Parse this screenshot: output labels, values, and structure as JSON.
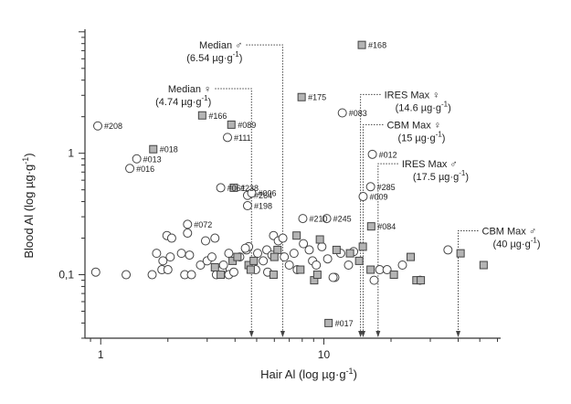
{
  "chart_data": {
    "type": "scatter",
    "xlabel": "Hair Al (log µg·g",
    "xlabel_sup": "-1",
    "xlabel_end": ")",
    "ylabel": "Blood Al (log µg·g",
    "ylabel_sup": "-1",
    "ylabel_end": ")",
    "x_scale": "log",
    "y_scale": "log",
    "xlim": [
      0.85,
      62
    ],
    "ylim": [
      0.03,
      10.5
    ],
    "x_ticks": [
      {
        "value": 1,
        "label": "1"
      },
      {
        "value": 10,
        "label": "10"
      }
    ],
    "y_ticks": [
      {
        "value": 0.1,
        "label": "0,1"
      },
      {
        "value": 1,
        "label": "1"
      }
    ],
    "grid": false,
    "series": [
      {
        "marker": "circle",
        "points": [
          {
            "x": 0.95,
            "y": 0.105
          },
          {
            "x": 1.3,
            "y": 0.1
          },
          {
            "x": 1.7,
            "y": 0.1
          },
          {
            "x": 1.88,
            "y": 0.11
          },
          {
            "x": 1.98,
            "y": 0.21
          },
          {
            "x": 1.78,
            "y": 0.15
          },
          {
            "x": 2.05,
            "y": 0.14
          },
          {
            "x": 2.08,
            "y": 0.2
          },
          {
            "x": 1.9,
            "y": 0.13
          },
          {
            "x": 2.3,
            "y": 0.15
          },
          {
            "x": 2.38,
            "y": 0.1
          },
          {
            "x": 2.5,
            "y": 0.145
          },
          {
            "x": 2.55,
            "y": 0.1
          },
          {
            "x": 2.8,
            "y": 0.12
          },
          {
            "x": 2.95,
            "y": 0.19
          },
          {
            "x": 3.25,
            "y": 0.2
          },
          {
            "x": 2.45,
            "y": 0.22
          },
          {
            "x": 3.0,
            "y": 0.13
          },
          {
            "x": 3.3,
            "y": 0.1
          },
          {
            "x": 3.5,
            "y": 0.11
          },
          {
            "x": 3.55,
            "y": 0.12
          },
          {
            "x": 3.75,
            "y": 0.1
          },
          {
            "x": 3.95,
            "y": 0.105
          },
          {
            "x": 3.75,
            "y": 0.15
          },
          {
            "x": 4.2,
            "y": 0.14
          },
          {
            "x": 4.5,
            "y": 0.16
          },
          {
            "x": 4.6,
            "y": 0.17
          },
          {
            "x": 4.75,
            "y": 0.12
          },
          {
            "x": 4.95,
            "y": 0.11
          },
          {
            "x": 5.05,
            "y": 0.15
          },
          {
            "x": 5.35,
            "y": 0.13
          },
          {
            "x": 5.55,
            "y": 0.16
          },
          {
            "x": 5.85,
            "y": 0.145
          },
          {
            "x": 5.95,
            "y": 0.21
          },
          {
            "x": 6.25,
            "y": 0.19
          },
          {
            "x": 6.55,
            "y": 0.2
          },
          {
            "x": 6.65,
            "y": 0.14
          },
          {
            "x": 7.0,
            "y": 0.12
          },
          {
            "x": 7.35,
            "y": 0.15
          },
          {
            "x": 7.6,
            "y": 0.11
          },
          {
            "x": 8.1,
            "y": 0.18
          },
          {
            "x": 8.6,
            "y": 0.16
          },
          {
            "x": 8.9,
            "y": 0.13
          },
          {
            "x": 9.25,
            "y": 0.12
          },
          {
            "x": 9.8,
            "y": 0.17
          },
          {
            "x": 10.4,
            "y": 0.135
          },
          {
            "x": 11.2,
            "y": 0.095
          },
          {
            "x": 11.0,
            "y": 0.095
          },
          {
            "x": 11.9,
            "y": 0.15
          },
          {
            "x": 12.9,
            "y": 0.12
          },
          {
            "x": 13.6,
            "y": 0.155
          },
          {
            "x": 16.8,
            "y": 0.09
          },
          {
            "x": 17.8,
            "y": 0.11
          },
          {
            "x": 19.2,
            "y": 0.11
          },
          {
            "x": 22.5,
            "y": 0.12
          },
          {
            "x": 27.0,
            "y": 0.09
          },
          {
            "x": 36.0,
            "y": 0.16
          },
          {
            "x": 4.45,
            "y": 0.165
          },
          {
            "x": 3.15,
            "y": 0.14
          },
          {
            "x": 5.6,
            "y": 0.105
          },
          {
            "x": 2.0,
            "y": 0.11
          }
        ]
      },
      {
        "marker": "square",
        "points": [
          {
            "x": 3.25,
            "y": 0.115
          },
          {
            "x": 3.45,
            "y": 0.1
          },
          {
            "x": 3.9,
            "y": 0.13
          },
          {
            "x": 4.1,
            "y": 0.14
          },
          {
            "x": 4.6,
            "y": 0.12
          },
          {
            "x": 4.7,
            "y": 0.11
          },
          {
            "x": 4.85,
            "y": 0.13
          },
          {
            "x": 5.95,
            "y": 0.1
          },
          {
            "x": 6.2,
            "y": 0.16
          },
          {
            "x": 7.55,
            "y": 0.21
          },
          {
            "x": 7.85,
            "y": 0.11
          },
          {
            "x": 9.05,
            "y": 0.09
          },
          {
            "x": 9.35,
            "y": 0.1
          },
          {
            "x": 9.6,
            "y": 0.195
          },
          {
            "x": 11.4,
            "y": 0.16
          },
          {
            "x": 13.1,
            "y": 0.15
          },
          {
            "x": 14.4,
            "y": 0.13
          },
          {
            "x": 14.95,
            "y": 0.17
          },
          {
            "x": 16.2,
            "y": 0.11
          },
          {
            "x": 20.6,
            "y": 0.1
          },
          {
            "x": 24.5,
            "y": 0.14
          },
          {
            "x": 26.0,
            "y": 0.09
          },
          {
            "x": 27.2,
            "y": 0.09
          },
          {
            "x": 41.0,
            "y": 0.15
          },
          {
            "x": 52.0,
            "y": 0.12
          },
          {
            "x": 6.0,
            "y": 0.14
          }
        ]
      }
    ],
    "labeled_points": [
      {
        "label": "#208",
        "x": 0.97,
        "y": 1.68,
        "marker": "circle"
      },
      {
        "label": "#018",
        "x": 1.72,
        "y": 1.08,
        "marker": "square"
      },
      {
        "label": "#013",
        "x": 1.45,
        "y": 0.9,
        "marker": "circle"
      },
      {
        "label": "#016",
        "x": 1.35,
        "y": 0.75,
        "marker": "circle"
      },
      {
        "label": "#166",
        "x": 2.85,
        "y": 2.05,
        "marker": "square"
      },
      {
        "label": "#089",
        "x": 3.85,
        "y": 1.72,
        "marker": "square"
      },
      {
        "label": "#111",
        "x": 3.7,
        "y": 1.35,
        "marker": "circle"
      },
      {
        "label": "#061",
        "x": 3.45,
        "y": 0.52,
        "marker": "circle"
      },
      {
        "label": "#238",
        "x": 3.95,
        "y": 0.52,
        "marker": "square"
      },
      {
        "label": "#264",
        "x": 4.55,
        "y": 0.45,
        "marker": "circle"
      },
      {
        "label": "#006",
        "x": 4.75,
        "y": 0.47,
        "marker": "circle"
      },
      {
        "label": "#198",
        "x": 4.55,
        "y": 0.37,
        "marker": "circle"
      },
      {
        "label": "#072",
        "x": 2.45,
        "y": 0.26,
        "marker": "circle"
      },
      {
        "label": "#175",
        "x": 7.95,
        "y": 2.9,
        "marker": "square"
      },
      {
        "label": "#083",
        "x": 12.1,
        "y": 2.15,
        "marker": "circle"
      },
      {
        "label": "#168",
        "x": 14.8,
        "y": 7.8,
        "marker": "square"
      },
      {
        "label": "#012",
        "x": 16.5,
        "y": 0.98,
        "marker": "circle"
      },
      {
        "label": "#285",
        "x": 16.2,
        "y": 0.53,
        "marker": "circle"
      },
      {
        "label": "#009",
        "x": 15.0,
        "y": 0.44,
        "marker": "circle"
      },
      {
        "label": "#210",
        "x": 8.05,
        "y": 0.29,
        "marker": "circle"
      },
      {
        "label": "#245",
        "x": 10.3,
        "y": 0.29,
        "marker": "circle"
      },
      {
        "label": "#084",
        "x": 16.3,
        "y": 0.25,
        "marker": "square"
      },
      {
        "label": "#017",
        "x": 10.5,
        "y": 0.04,
        "marker": "square"
      }
    ],
    "annotations": [
      {
        "line1": "Median ♂",
        "line2": "(6.54 µg·g",
        "sup": "-1",
        "end": ")",
        "x": 6.54,
        "y": 7.8,
        "side": "left"
      },
      {
        "line1": "Median ♀",
        "line2": "(4.74 µg·g",
        "sup": "-1",
        "end": ")",
        "x": 4.74,
        "y": 3.4,
        "side": "left"
      },
      {
        "line1": "IRES Max ♀",
        "line2": "(14.6 µg·g",
        "sup": "-1",
        "end": ")",
        "x": 14.6,
        "y": 3.05,
        "side": "right"
      },
      {
        "line1": "CBM Max ♀",
        "line2": "(15 µg·g",
        "sup": "-1",
        "end": ")",
        "x": 15.0,
        "y": 1.72,
        "side": "right"
      },
      {
        "line1": "IRES Max ♂",
        "line2": "(17.5 µg·g",
        "sup": "-1",
        "end": ")",
        "x": 17.5,
        "y": 0.82,
        "side": "right"
      },
      {
        "line1": "CBM Max ♂",
        "line2": "(40 µg·g",
        "sup": "-1",
        "end": ")",
        "x": 40.0,
        "y": 0.23,
        "side": "right"
      }
    ]
  }
}
